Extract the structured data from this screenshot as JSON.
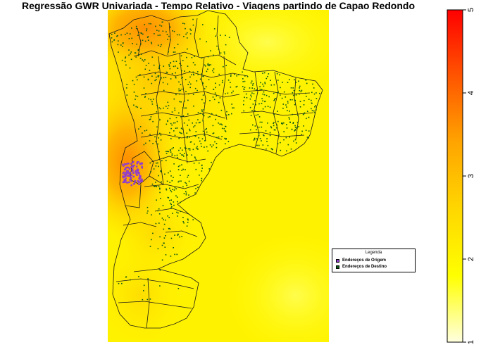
{
  "title": "Regressão GWR Univariada - Tempo Relativo - Viagens partindo de Capao Redondo",
  "legend": {
    "title": "Legenda",
    "items": [
      {
        "label": "Endereços de Origem",
        "color": "#8e3ccf"
      },
      {
        "label": "Endereços de Destino",
        "color": "#0b5a17"
      }
    ]
  },
  "colorbar": {
    "min": 1,
    "max": 5,
    "ticks": [
      "1",
      "2",
      "3",
      "4",
      "5"
    ],
    "colors": [
      "#ffffe0",
      "#ffff00",
      "#ffd700",
      "#ffa500",
      "#ff5500",
      "#ff0000"
    ]
  },
  "map_colors": {
    "background": "#ffff00",
    "hot_spot": "#ff9a00",
    "boundary": "#1a1a1a",
    "destination_dot": "#0b5a17",
    "origin_dot": "#8e3ccf"
  }
}
